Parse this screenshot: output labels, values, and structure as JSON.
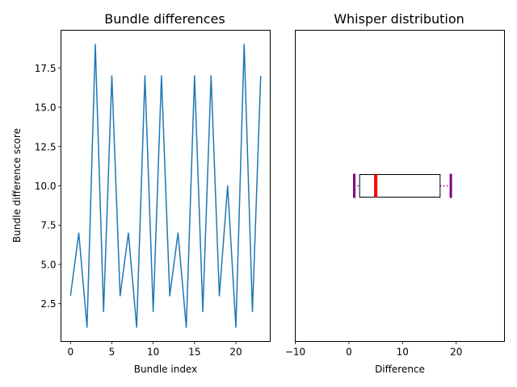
{
  "chart_data": [
    {
      "type": "line",
      "title": "Bundle differences",
      "xlabel": "Bundle index",
      "ylabel": "Bundle difference score",
      "x": [
        0,
        1,
        2,
        3,
        4,
        5,
        6,
        7,
        8,
        9,
        10,
        11,
        12,
        13,
        14,
        15,
        16,
        17,
        18,
        19,
        20,
        21,
        22,
        23
      ],
      "series": [
        {
          "values": [
            3,
            7,
            1,
            19,
            2,
            17,
            3,
            7,
            1,
            17,
            2,
            17,
            3,
            7,
            1,
            17,
            2,
            17,
            3,
            10,
            1,
            19,
            2,
            17
          ]
        }
      ],
      "xlim": [
        -1.15,
        24.15
      ],
      "ylim": [
        0.1,
        19.9
      ],
      "xticks": [
        0,
        5,
        10,
        15,
        20
      ],
      "xtick_labels": [
        "0",
        "5",
        "10",
        "15",
        "20"
      ],
      "yticks": [
        2.5,
        5.0,
        7.5,
        10.0,
        12.5,
        15.0,
        17.5
      ],
      "ytick_labels": [
        "2.5",
        "5.0",
        "7.5",
        "10.0",
        "12.5",
        "15.0",
        "17.5"
      ],
      "line_color": "#1f77b4",
      "grid": false
    },
    {
      "type": "box",
      "title": "Whisper distribution",
      "xlabel": "Difference",
      "orientation": "horizontal",
      "box": {
        "whisker_low": 1,
        "q1": 2,
        "median": 5,
        "q3": 17,
        "whisker_high": 19
      },
      "position": 10,
      "xlim": [
        -10,
        29
      ],
      "ylim": [
        0.1,
        19.9
      ],
      "xticks": [
        -10,
        0,
        10,
        20
      ],
      "xtick_labels": [
        "−10",
        "0",
        "10",
        "20"
      ],
      "median_color": "#ff0000",
      "whisker_color": "#800080",
      "box_color": "#000000",
      "grid": false
    }
  ]
}
